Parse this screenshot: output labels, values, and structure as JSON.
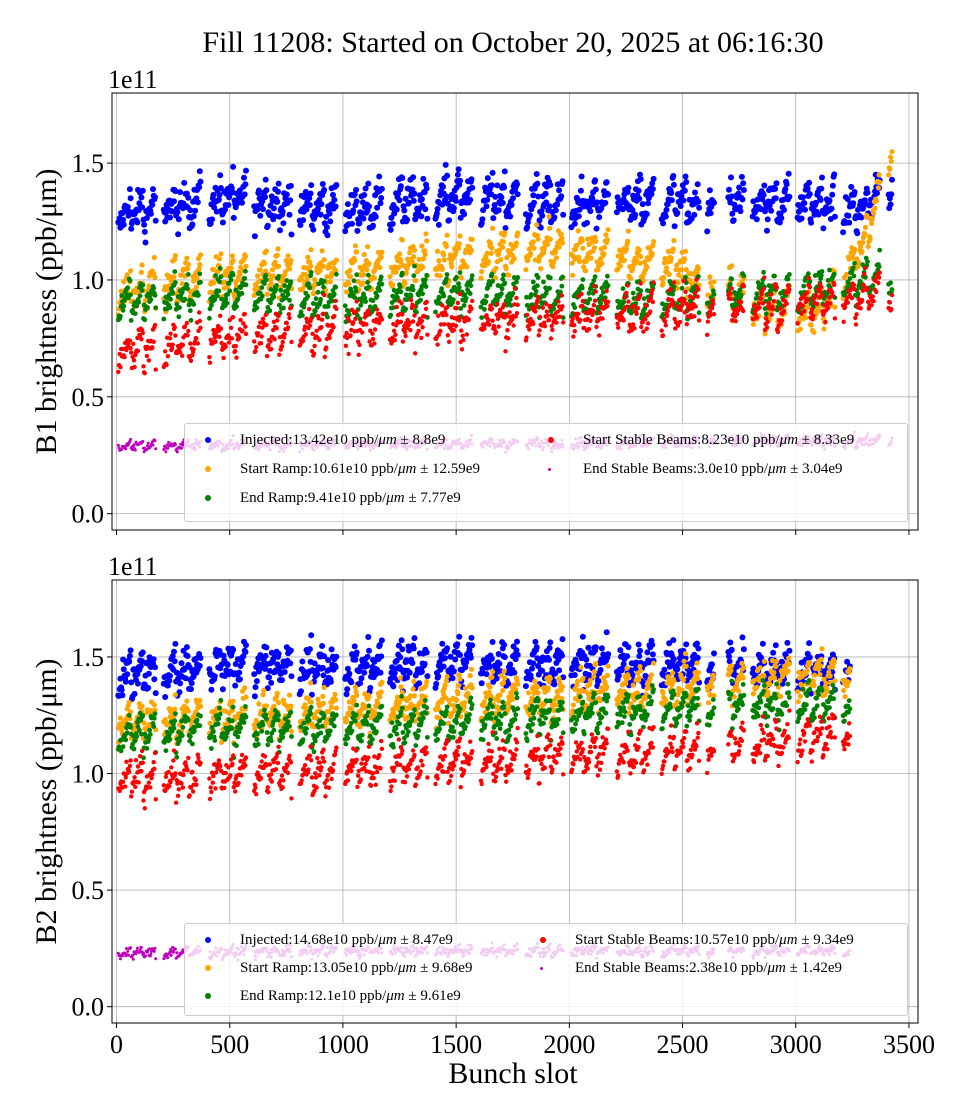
{
  "chart_data": {
    "title": "Fill 11208: Started on October 20, 2025 at 06:16:30",
    "type": "scatter",
    "xlabel": "Bunch slot",
    "xlim": [
      -20,
      3540
    ],
    "xticks": [
      "0",
      "500",
      "1000",
      "1500",
      "2000",
      "2500",
      "3000",
      "3500"
    ],
    "grid": true,
    "legend_placement": "lower-right",
    "panels": [
      {
        "ylabel": "B1 brightness (ppb/μm)",
        "offset_text": "1e11",
        "ylim": [
          -0.07,
          1.8
        ],
        "yticks": [
          "0.0",
          "0.5",
          "1.0",
          "1.5"
        ],
        "series": [
          {
            "name": "Injected",
            "value": "13.42e10",
            "std": "8.8e9",
            "color": "#0000ff",
            "trend": [
              [
                0,
                1.28
              ],
              [
                500,
                1.35
              ],
              [
                1000,
                1.3
              ],
              [
                1500,
                1.36
              ],
              [
                2000,
                1.32
              ],
              [
                2500,
                1.33
              ],
              [
                3000,
                1.34
              ],
              [
                3300,
                1.3
              ],
              [
                3420,
                1.42
              ]
            ]
          },
          {
            "name": "Start Ramp",
            "value": "10.61e10",
            "std": "12.59e9",
            "color": "#ffa500",
            "trend": [
              [
                0,
                0.95
              ],
              [
                500,
                1.03
              ],
              [
                1000,
                1.03
              ],
              [
                1500,
                1.1
              ],
              [
                2000,
                1.14
              ],
              [
                2500,
                1.05
              ],
              [
                2800,
                0.9
              ],
              [
                3100,
                0.86
              ],
              [
                3300,
                1.15
              ],
              [
                3420,
                1.55
              ]
            ]
          },
          {
            "name": "End Ramp",
            "value": "9.41e10",
            "std": "7.77e9",
            "color": "#008000",
            "trend": [
              [
                0,
                0.9
              ],
              [
                500,
                0.95
              ],
              [
                1000,
                0.92
              ],
              [
                1500,
                0.95
              ],
              [
                2000,
                0.93
              ],
              [
                2500,
                0.92
              ],
              [
                3000,
                0.95
              ],
              [
                3420,
                1.02
              ]
            ]
          },
          {
            "name": "Start Stable Beams",
            "value": "8.23e10",
            "std": "8.33e9",
            "color": "#ff0000",
            "trend": [
              [
                0,
                0.7
              ],
              [
                500,
                0.76
              ],
              [
                1000,
                0.8
              ],
              [
                1500,
                0.82
              ],
              [
                2000,
                0.85
              ],
              [
                2500,
                0.88
              ],
              [
                3000,
                0.9
              ],
              [
                3420,
                0.95
              ]
            ]
          },
          {
            "name": "End Stable Beams",
            "value": "3.0e10",
            "std": "3.04e9",
            "color": "#bf00bf",
            "trend": [
              [
                0,
                0.29
              ],
              [
                1000,
                0.3
              ],
              [
                2000,
                0.3
              ],
              [
                2700,
                0.31
              ],
              [
                3420,
                0.31
              ]
            ]
          }
        ]
      },
      {
        "ylabel": "B2 brightness (ppb/μm)",
        "offset_text": "1e11",
        "ylim": [
          -0.07,
          1.83
        ],
        "yticks": [
          "0.0",
          "0.5",
          "1.0",
          "1.5"
        ],
        "series": [
          {
            "name": "Injected",
            "value": "14.68e10",
            "std": "8.47e9",
            "color": "#0000ff",
            "trend": [
              [
                0,
                1.42
              ],
              [
                500,
                1.47
              ],
              [
                1000,
                1.45
              ],
              [
                1500,
                1.48
              ],
              [
                2000,
                1.47
              ],
              [
                2500,
                1.47
              ],
              [
                3000,
                1.45
              ],
              [
                3240,
                1.45
              ]
            ]
          },
          {
            "name": "Start Ramp",
            "value": "13.05e10",
            "std": "9.68e9",
            "color": "#ffa500",
            "trend": [
              [
                0,
                1.22
              ],
              [
                500,
                1.25
              ],
              [
                1000,
                1.27
              ],
              [
                1500,
                1.32
              ],
              [
                2000,
                1.34
              ],
              [
                2500,
                1.38
              ],
              [
                3000,
                1.42
              ],
              [
                3240,
                1.42
              ]
            ]
          },
          {
            "name": "End Ramp",
            "value": "12.1e10",
            "std": "9.61e9",
            "color": "#008000",
            "trend": [
              [
                0,
                1.17
              ],
              [
                500,
                1.2
              ],
              [
                1000,
                1.2
              ],
              [
                1500,
                1.22
              ],
              [
                2000,
                1.26
              ],
              [
                2500,
                1.28
              ],
              [
                3000,
                1.3
              ],
              [
                3240,
                1.3
              ]
            ]
          },
          {
            "name": "Start Stable Beams",
            "value": "10.57e10",
            "std": "9.34e9",
            "color": "#ff0000",
            "trend": [
              [
                0,
                0.98
              ],
              [
                500,
                1.0
              ],
              [
                1000,
                1.02
              ],
              [
                1500,
                1.05
              ],
              [
                2000,
                1.08
              ],
              [
                2500,
                1.1
              ],
              [
                3000,
                1.15
              ],
              [
                3240,
                1.18
              ]
            ]
          },
          {
            "name": "End Stable Beams",
            "value": "2.38e10",
            "std": "1.42e9",
            "color": "#bf00bf",
            "trend": [
              [
                0,
                0.23
              ],
              [
                1000,
                0.24
              ],
              [
                2000,
                0.24
              ],
              [
                3240,
                0.24
              ]
            ]
          }
        ]
      }
    ]
  },
  "legend_unit": "ppb/",
  "legend_unit_italic": "μm",
  "legend_pm": "±"
}
